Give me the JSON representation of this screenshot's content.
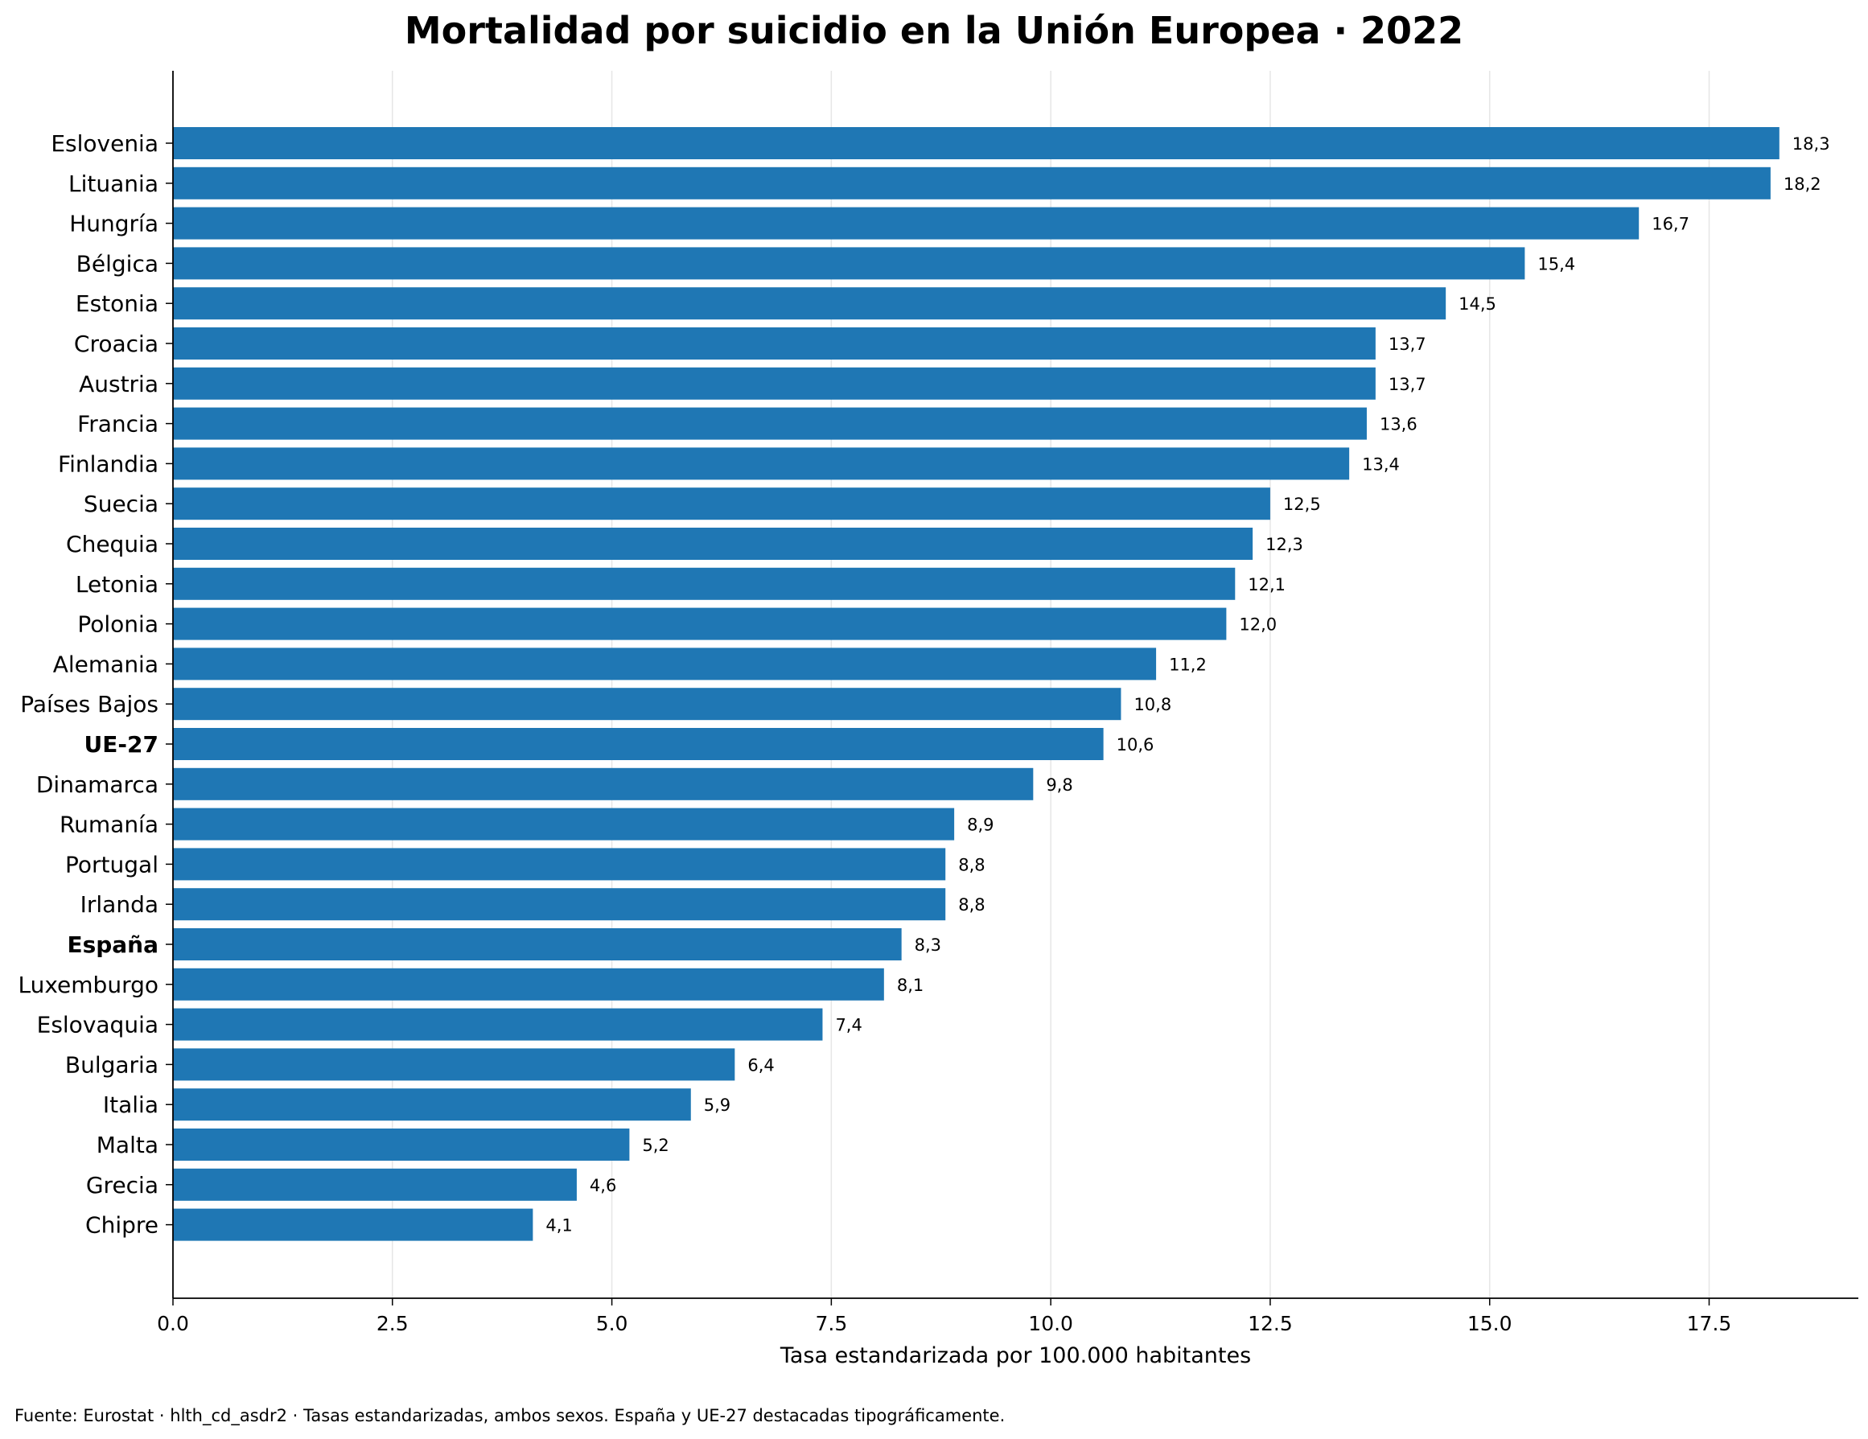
{
  "chart_data": {
    "type": "bar",
    "orientation": "horizontal",
    "title": "Mortalidad por suicidio en la Unión Europea · 2022",
    "xlabel": "Tasa estandarizada por 100.000 habitantes",
    "ylabel": "",
    "xlim": [
      0,
      19.2
    ],
    "xticks": [
      0.0,
      2.5,
      5.0,
      7.5,
      10.0,
      12.5,
      15.0,
      17.5
    ],
    "xtick_labels": [
      "0.0",
      "2.5",
      "5.0",
      "7.5",
      "10.0",
      "12.5",
      "15.0",
      "17.5"
    ],
    "grid": "vertical",
    "bar_color": "#1f77b4",
    "highlighted": [
      "UE-27",
      "España"
    ],
    "categories": [
      "Eslovenia",
      "Lituania",
      "Hungría",
      "Bélgica",
      "Estonia",
      "Croacia",
      "Austria",
      "Francia",
      "Finlandia",
      "Suecia",
      "Chequia",
      "Letonia",
      "Polonia",
      "Alemania",
      "Países Bajos",
      "UE-27",
      "Dinamarca",
      "Rumanía",
      "Portugal",
      "Irlanda",
      "España",
      "Luxemburgo",
      "Eslovaquia",
      "Bulgaria",
      "Italia",
      "Malta",
      "Grecia",
      "Chipre"
    ],
    "values": [
      18.3,
      18.2,
      16.7,
      15.4,
      14.5,
      13.7,
      13.7,
      13.6,
      13.4,
      12.5,
      12.3,
      12.1,
      12.0,
      11.2,
      10.8,
      10.6,
      9.8,
      8.9,
      8.8,
      8.8,
      8.3,
      8.1,
      7.4,
      6.4,
      5.9,
      5.2,
      4.6,
      4.1
    ],
    "value_labels": [
      "18,3",
      "18,2",
      "16,7",
      "15,4",
      "14,5",
      "13,7",
      "13,7",
      "13,6",
      "13,4",
      "12,5",
      "12,3",
      "12,1",
      "12,0",
      "11,2",
      "10,8",
      "10,6",
      "9,8",
      "8,9",
      "8,8",
      "8,8",
      "8,3",
      "8,1",
      "7,4",
      "6,4",
      "5,9",
      "5,2",
      "4,6",
      "4,1"
    ]
  },
  "footer": {
    "source": "Fuente: Eurostat · hlth_cd_asdr2 · Tasas estandarizadas, ambos sexos. España y UE-27 destacadas tipográficamente."
  }
}
